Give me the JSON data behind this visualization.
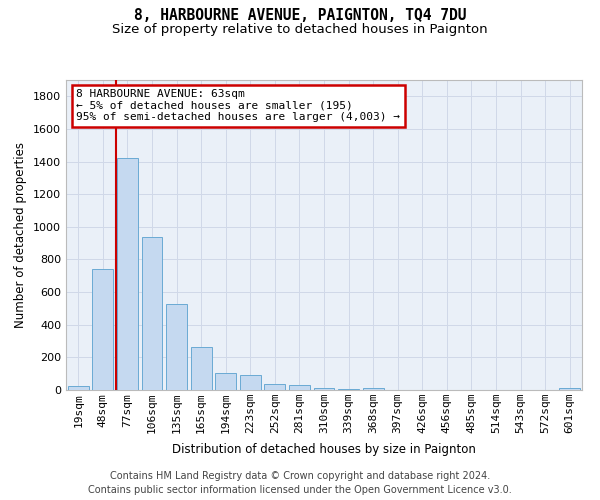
{
  "title": "8, HARBOURNE AVENUE, PAIGNTON, TQ4 7DU",
  "subtitle": "Size of property relative to detached houses in Paignton",
  "xlabel": "Distribution of detached houses by size in Paignton",
  "ylabel": "Number of detached properties",
  "footer_line1": "Contains HM Land Registry data © Crown copyright and database right 2024.",
  "footer_line2": "Contains public sector information licensed under the Open Government Licence v3.0.",
  "categories": [
    "19sqm",
    "48sqm",
    "77sqm",
    "106sqm",
    "135sqm",
    "165sqm",
    "194sqm",
    "223sqm",
    "252sqm",
    "281sqm",
    "310sqm",
    "339sqm",
    "368sqm",
    "397sqm",
    "426sqm",
    "456sqm",
    "485sqm",
    "514sqm",
    "543sqm",
    "572sqm",
    "601sqm"
  ],
  "values": [
    22,
    740,
    1420,
    935,
    530,
    265,
    105,
    95,
    38,
    28,
    12,
    4,
    14,
    3,
    2,
    1,
    2,
    1,
    0,
    0,
    12
  ],
  "bar_color": "#c5d9f0",
  "bar_edge_color": "#6aaad4",
  "red_line_x": 1.52,
  "annotation_text": "8 HARBOURNE AVENUE: 63sqm\n← 5% of detached houses are smaller (195)\n95% of semi-detached houses are larger (4,003) →",
  "annotation_box_color": "#ffffff",
  "annotation_box_edge": "#cc0000",
  "red_line_color": "#cc0000",
  "grid_color": "#d0d8e8",
  "background_color": "#eaf0f8",
  "ylim": [
    0,
    1900
  ],
  "yticks": [
    0,
    200,
    400,
    600,
    800,
    1000,
    1200,
    1400,
    1600,
    1800
  ],
  "title_fontsize": 10.5,
  "subtitle_fontsize": 9.5,
  "axis_label_fontsize": 8.5,
  "tick_fontsize": 8,
  "footer_fontsize": 7,
  "ann_fontsize": 8
}
